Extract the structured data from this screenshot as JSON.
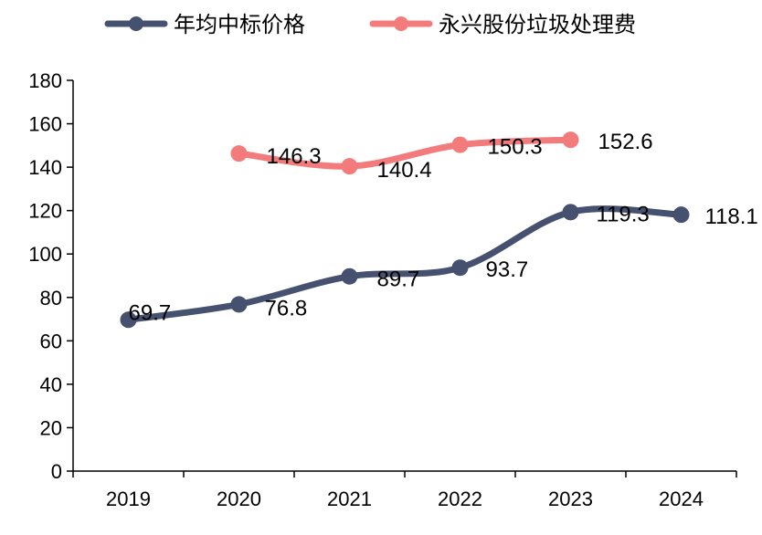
{
  "chart_data": {
    "type": "line",
    "x": [
      "2019",
      "2020",
      "2021",
      "2022",
      "2023",
      "2024"
    ],
    "ylim": [
      0,
      180
    ],
    "yticks": [
      0,
      20,
      40,
      60,
      80,
      100,
      120,
      140,
      160,
      180
    ],
    "grid": false,
    "legend_position": "top",
    "series": [
      {
        "name": "年均中标价格",
        "color": "#46506f",
        "values": [
          69.7,
          76.8,
          89.7,
          93.7,
          119.3,
          118.1
        ],
        "labels": [
          "69.7",
          "76.8",
          "89.7",
          "93.7",
          "119.3",
          "118.1"
        ]
      },
      {
        "name": "永兴股份垃圾处理费",
        "color": "#f47b7b",
        "values": [
          null,
          146.3,
          140.4,
          150.3,
          152.6,
          null
        ],
        "labels": [
          null,
          "146.3",
          "140.4",
          "150.3",
          "152.6",
          null
        ]
      }
    ]
  }
}
